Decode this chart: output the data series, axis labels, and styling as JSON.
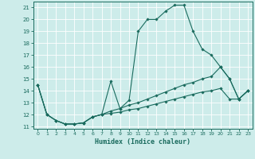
{
  "xlabel": "Humidex (Indice chaleur)",
  "xlim": [
    -0.5,
    23.5
  ],
  "ylim": [
    10.8,
    21.5
  ],
  "yticks": [
    11,
    12,
    13,
    14,
    15,
    16,
    17,
    18,
    19,
    20,
    21
  ],
  "xticks": [
    0,
    1,
    2,
    3,
    4,
    5,
    6,
    7,
    8,
    9,
    10,
    11,
    12,
    13,
    14,
    15,
    16,
    17,
    18,
    19,
    20,
    21,
    22,
    23
  ],
  "bg_color": "#cdecea",
  "line_color": "#1a6b5e",
  "grid_color": "#ffffff",
  "line1_x": [
    0,
    1,
    2,
    3,
    4,
    5,
    6,
    7,
    8,
    9,
    10,
    11,
    12,
    13,
    14,
    15,
    16,
    17,
    18,
    19,
    20,
    21,
    22,
    23
  ],
  "line1_y": [
    14.5,
    12.0,
    11.5,
    11.2,
    11.2,
    11.3,
    11.8,
    12.0,
    14.8,
    12.5,
    13.2,
    19.0,
    20.0,
    20.0,
    20.7,
    21.2,
    21.2,
    19.0,
    17.5,
    17.0,
    16.0,
    15.0,
    13.3,
    14.0
  ],
  "line2_x": [
    0,
    1,
    2,
    3,
    4,
    5,
    6,
    7,
    8,
    9,
    10,
    11,
    12,
    13,
    14,
    15,
    16,
    17,
    18,
    19,
    20,
    21,
    22,
    23
  ],
  "line2_y": [
    14.5,
    12.0,
    11.5,
    11.2,
    11.2,
    11.3,
    11.8,
    12.0,
    12.3,
    12.5,
    12.8,
    13.0,
    13.3,
    13.6,
    13.9,
    14.2,
    14.5,
    14.7,
    15.0,
    15.2,
    16.0,
    15.0,
    13.3,
    14.0
  ],
  "line3_x": [
    0,
    1,
    2,
    3,
    4,
    5,
    6,
    7,
    8,
    9,
    10,
    11,
    12,
    13,
    14,
    15,
    16,
    17,
    18,
    19,
    20,
    21,
    22,
    23
  ],
  "line3_y": [
    14.5,
    12.0,
    11.5,
    11.2,
    11.2,
    11.3,
    11.8,
    12.0,
    12.1,
    12.2,
    12.4,
    12.5,
    12.7,
    12.9,
    13.1,
    13.3,
    13.5,
    13.7,
    13.9,
    14.0,
    14.2,
    13.3,
    13.3,
    14.0
  ]
}
